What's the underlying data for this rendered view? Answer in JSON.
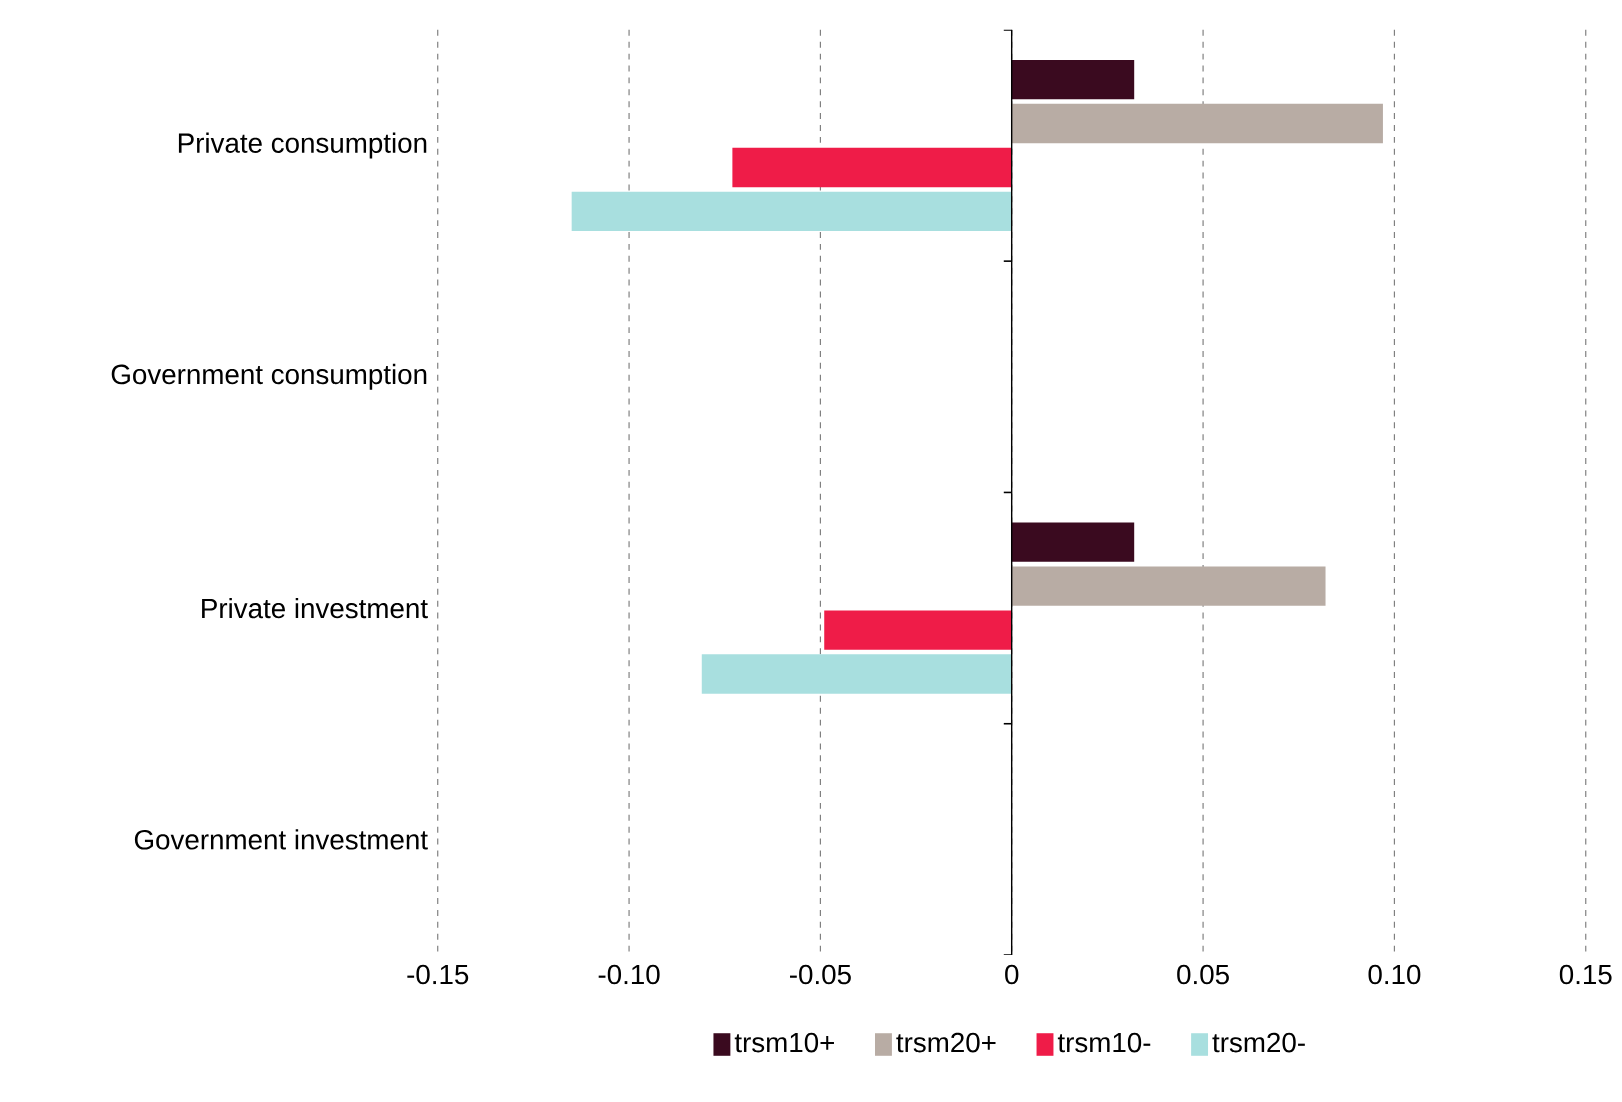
{
  "chart_data": {
    "type": "bar",
    "orientation": "horizontal",
    "categories": [
      "Private consumption",
      "Government consumption",
      "Private investment",
      "Government investment"
    ],
    "series": [
      {
        "name": "trsm10+",
        "color": "#3a0a1f",
        "values": [
          0.032,
          0,
          0.032,
          0
        ]
      },
      {
        "name": "trsm20+",
        "color": "#b8aca4",
        "values": [
          0.097,
          0,
          0.082,
          0
        ]
      },
      {
        "name": "trsm10-",
        "color": "#ef1c48",
        "values": [
          -0.073,
          0,
          -0.049,
          0
        ]
      },
      {
        "name": "trsm20-",
        "color": "#a8dfdf",
        "values": [
          -0.115,
          0,
          -0.081,
          0
        ]
      }
    ],
    "xlim": [
      -0.15,
      0.15
    ],
    "xticks": [
      -0.15,
      {
        "value": -0.1,
        "label": "-0.10"
      },
      -0.05,
      0,
      0.05,
      {
        "value": 0.1,
        "label": "0.10"
      },
      0.15
    ],
    "grid": "x",
    "legend": "bottom"
  }
}
